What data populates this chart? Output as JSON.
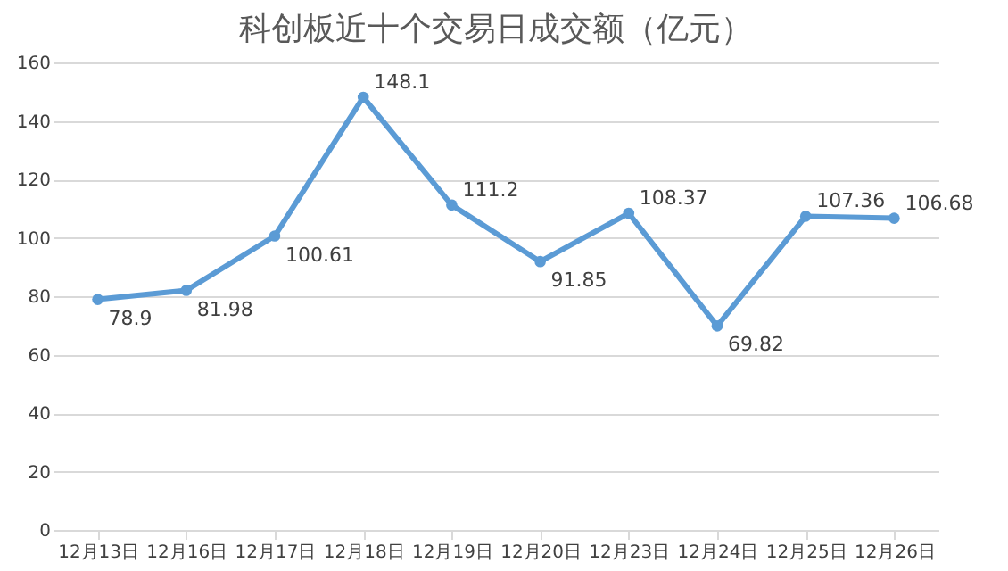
{
  "chart_data": {
    "type": "line",
    "title": "科创板近十个交易日成交额（亿元）",
    "categories": [
      "12月13日",
      "12月16日",
      "12月17日",
      "12月18日",
      "12月19日",
      "12月20日",
      "12月23日",
      "12月24日",
      "12月25日",
      "12月26日"
    ],
    "values": [
      78.9,
      81.98,
      100.61,
      148.1,
      111.2,
      91.85,
      108.37,
      69.82,
      107.36,
      106.68
    ],
    "color": "#5b9bd5",
    "ylim": [
      0,
      160
    ],
    "yticks": [
      0,
      20,
      40,
      60,
      80,
      100,
      120,
      140,
      160
    ],
    "grid": "y",
    "data_labels": true,
    "marker": "circle",
    "line_style": "solid"
  }
}
